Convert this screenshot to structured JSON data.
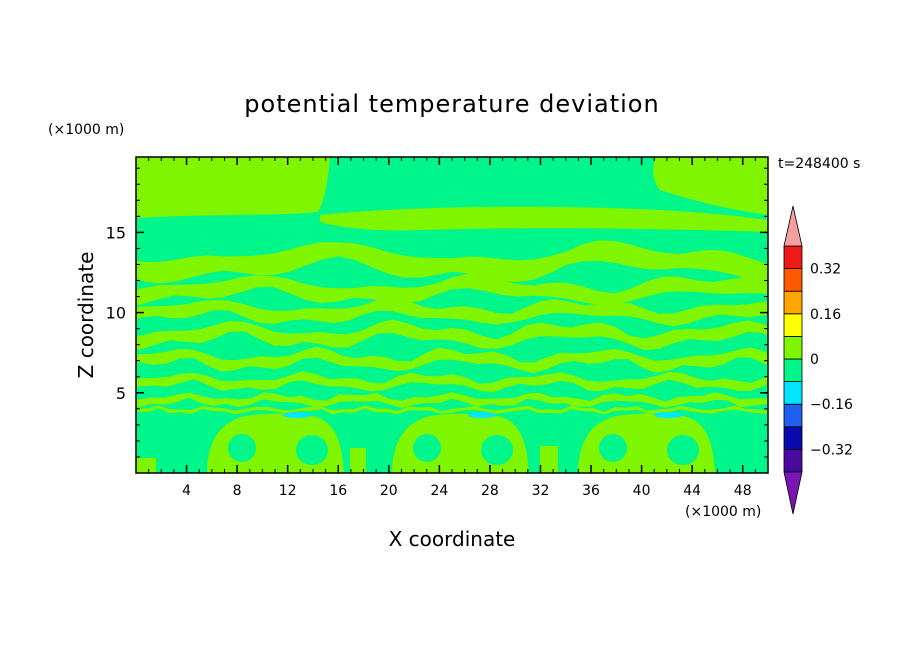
{
  "chart_data": {
    "type": "heatmap",
    "title": "potential temperature deviation",
    "xlabel": "X coordinate",
    "ylabel": "Z coordinate",
    "x_unit": "(×1000 m)",
    "y_unit": "(×1000 m)",
    "time_label": "t=248400 s",
    "xlim": [
      0,
      50
    ],
    "ylim": [
      0,
      19.7
    ],
    "x_ticks": [
      4,
      8,
      12,
      16,
      20,
      24,
      28,
      32,
      36,
      40,
      44,
      48
    ],
    "y_ticks": [
      5,
      10,
      15
    ],
    "grid": false,
    "colorbar": {
      "placement": "right",
      "levels": [
        -0.4,
        -0.32,
        -0.24,
        -0.16,
        -0.08,
        0,
        0.08,
        0.16,
        0.24,
        0.32,
        0.4
      ],
      "labels": [
        "0.32",
        "0.16",
        "0",
        "−0.16",
        "−0.32"
      ],
      "label_values": [
        0.32,
        0.16,
        0,
        -0.16,
        -0.32
      ],
      "colors": [
        "#4a0aa0",
        "#0a0ab0",
        "#2060f0",
        "#00e6ff",
        "#00f58a",
        "#7ff500",
        "#ffff00",
        "#ffa500",
        "#ff5a00",
        "#f01818"
      ],
      "under_color": "#7a14b4",
      "over_color": "#f5a0a0"
    },
    "fill_colors": {
      "background_band": "#00f58a",
      "warm_band": "#7ff500",
      "cool_cells": "#00e6ff"
    }
  }
}
